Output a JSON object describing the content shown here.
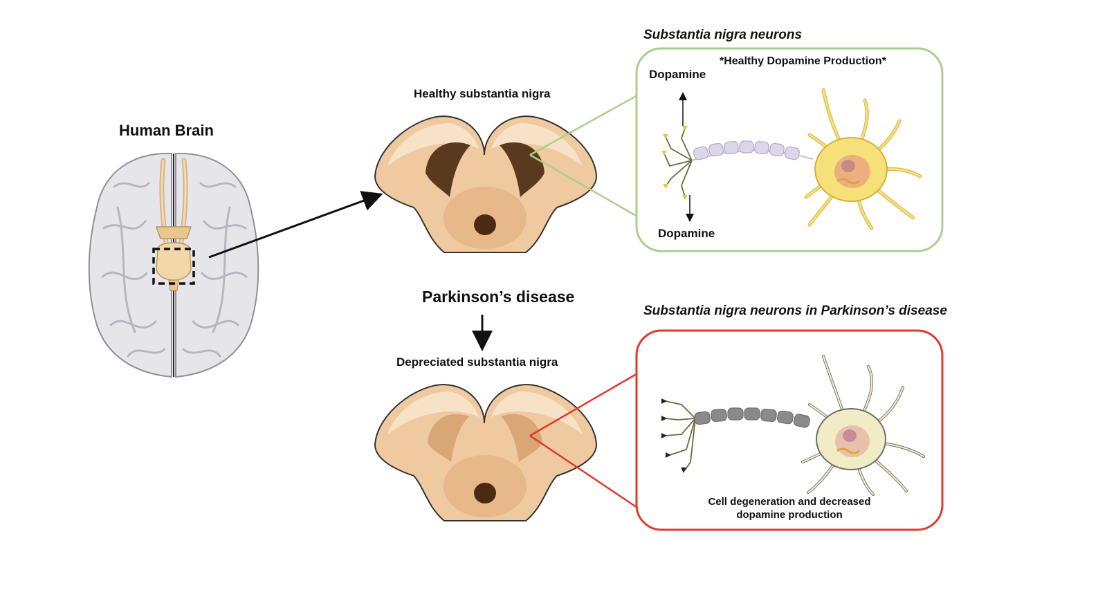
{
  "labels": {
    "human_brain": "Human Brain",
    "healthy_sn": "Healthy substantia nigra",
    "parkinsons": "Parkinson’s disease",
    "depreciated_sn": "Depreciated substantia nigra",
    "sn_neurons": "Substantia nigra neurons",
    "sn_neurons_pd": "Substantia nigra neurons in Parkinson’s disease",
    "healthy_dopamine": "*Healthy Dopamine Production*",
    "dopamine_top": "Dopamine",
    "dopamine_bottom": "Dopamine",
    "cell_degeneration": "Cell degeneration and decreased dopamine production"
  },
  "colors": {
    "healthy_box": "#a9cf8c",
    "disease_box": "#e0392b",
    "tissue": "#efc9a0",
    "nigra_dark": "#5a3a1e",
    "neuron_healthy": "#f6e07a",
    "neuron_disease": "#f1ebc6",
    "axon_healthy": "#ddd6ea",
    "axon_disease": "#8a8a8a"
  }
}
